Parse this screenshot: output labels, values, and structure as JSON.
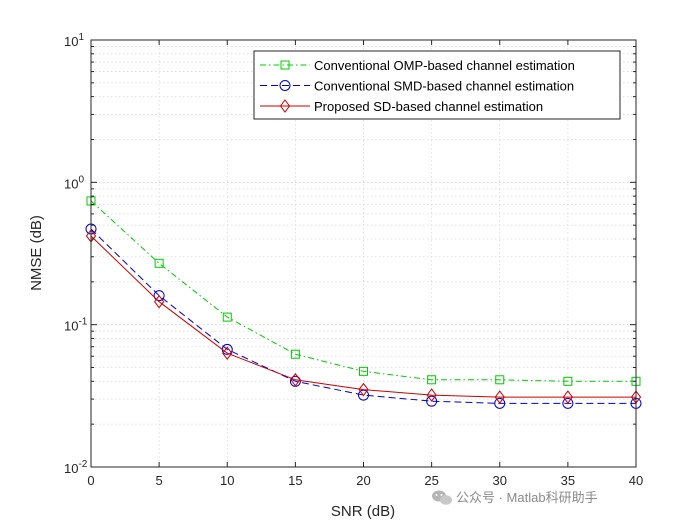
{
  "chart_data": {
    "type": "line",
    "xlabel": "SNR (dB)",
    "ylabel": "NMSE (dB)",
    "xlim": [
      0,
      40
    ],
    "ylim": [
      0.01,
      10
    ],
    "yscale": "log",
    "grid": true,
    "legend_position": "top-right",
    "x": [
      0,
      5,
      10,
      15,
      20,
      25,
      30,
      35,
      40
    ],
    "x_tick_labels": [
      "0",
      "5",
      "10",
      "15",
      "20",
      "25",
      "30",
      "35",
      "40"
    ],
    "y_ticks": [
      {
        "value": 0.01,
        "base": "10",
        "exp": "-2"
      },
      {
        "value": 0.1,
        "base": "10",
        "exp": "-1"
      },
      {
        "value": 1,
        "base": "10",
        "exp": "0"
      },
      {
        "value": 10,
        "base": "10",
        "exp": "1"
      }
    ],
    "series": [
      {
        "name": "Conventional OMP-based channel estimation",
        "values": [
          0.74,
          0.27,
          0.113,
          0.062,
          0.047,
          0.041,
          0.041,
          0.04,
          0.04
        ],
        "color": "#00cc00",
        "dash": "dashdot",
        "marker": "square"
      },
      {
        "name": "Conventional SMD-based channel estimation",
        "values": [
          0.47,
          0.16,
          0.067,
          0.04,
          0.032,
          0.029,
          0.028,
          0.028,
          0.028
        ],
        "color": "#0000cc",
        "dash": "dashed",
        "marker": "circle"
      },
      {
        "name": "Proposed SD-based channel estimation",
        "values": [
          0.42,
          0.145,
          0.063,
          0.041,
          0.035,
          0.032,
          0.031,
          0.031,
          0.031
        ],
        "color": "#cc0000",
        "dash": "solid",
        "marker": "diamond"
      }
    ]
  },
  "watermark": {
    "icon": "wechat-icon",
    "text": "公众号 · Matlab科研助手"
  }
}
